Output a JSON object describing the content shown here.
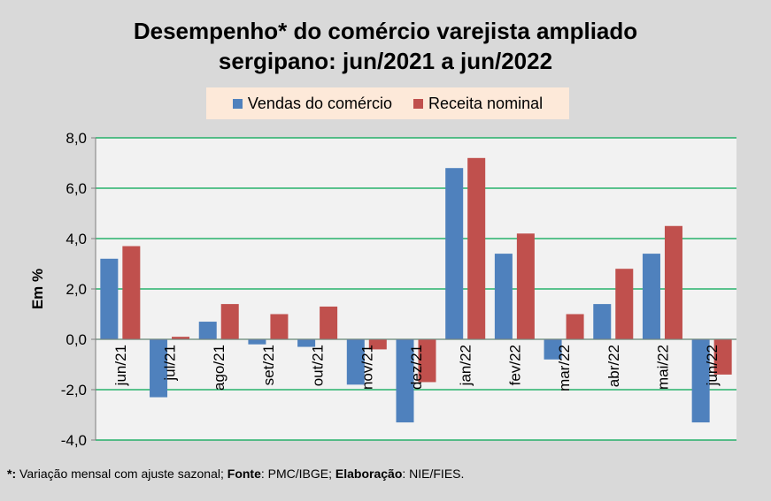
{
  "chart_data": {
    "type": "bar",
    "title_line1": "Desempenho* do comércio varejista ampliado",
    "title_line2": "sergipano: jun/2021 a jun/2022",
    "ylabel": "Em %",
    "xlabel": "",
    "ylim": [
      -4.0,
      8.0
    ],
    "yticks": [
      "8,0",
      "6,0",
      "4,0",
      "2,0",
      "0,0",
      "-2,0",
      "-4,0"
    ],
    "ytick_values": [
      8,
      6,
      4,
      2,
      0,
      -2,
      -4
    ],
    "grid": true,
    "legend_position": "top-center",
    "categories": [
      "jun/21",
      "jul/21",
      "ago/21",
      "set/21",
      "out/21",
      "nov/21",
      "dez/21",
      "jan/22",
      "fev/22",
      "mar/22",
      "abr/22",
      "mai/22",
      "jun/22"
    ],
    "series": [
      {
        "name": "Vendas do comércio",
        "color": "#4f81bd",
        "values": [
          3.2,
          -2.3,
          0.7,
          -0.2,
          -0.3,
          -1.8,
          -3.3,
          6.8,
          3.4,
          -0.8,
          1.4,
          3.4,
          -3.3
        ]
      },
      {
        "name": "Receita nominal",
        "color": "#c0504d",
        "values": [
          3.7,
          0.1,
          1.4,
          1.0,
          1.3,
          -0.4,
          -1.7,
          7.2,
          4.2,
          1.0,
          2.8,
          4.5,
          -1.4
        ]
      }
    ]
  },
  "footnote": {
    "star": "*:",
    "text1": " Variação mensal com ajuste sazonal; ",
    "fonte_label": "Fonte",
    "text2": ": PMC/IBGE; ",
    "elab_label": "Elaboração",
    "text3": ": NIE/FIES."
  }
}
